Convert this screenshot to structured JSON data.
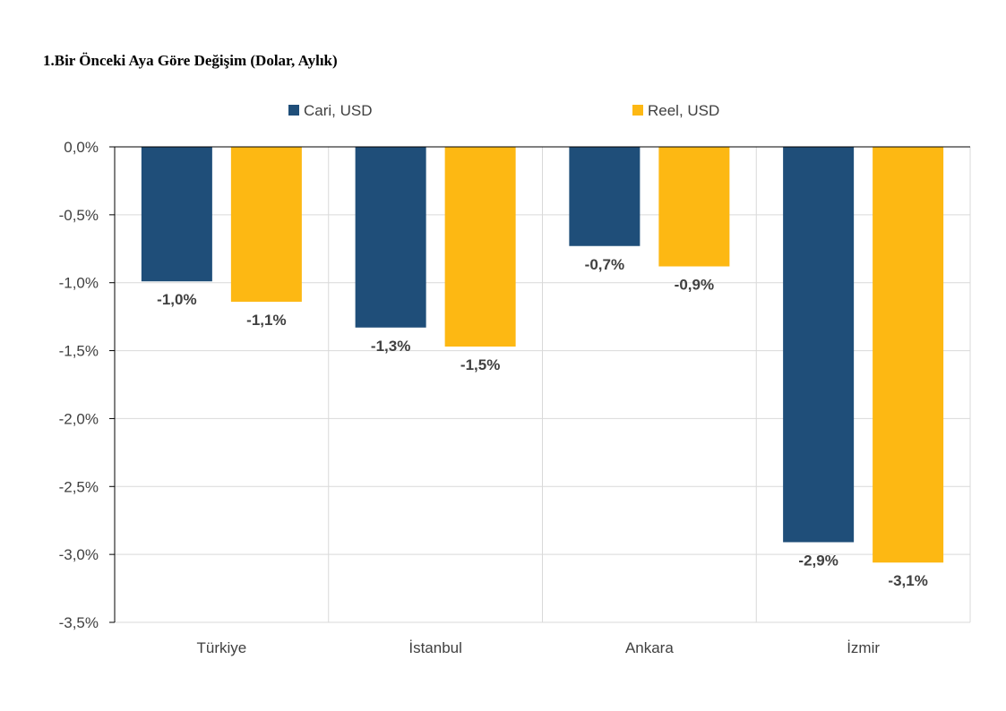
{
  "chart_data": {
    "type": "bar",
    "title": "1.Bir Önceki Aya Göre Değişim (Dolar, Aylık)",
    "categories": [
      "Türkiye",
      "İstanbul",
      "Ankara",
      "İzmir"
    ],
    "series": [
      {
        "name": "Cari, USD",
        "color": "#1F4E79",
        "values": [
          -0.99,
          -1.33,
          -0.73,
          -2.91
        ],
        "labels": [
          "-1,0%",
          "-1,3%",
          "-0,7%",
          "-2,9%"
        ]
      },
      {
        "name": "Reel, USD",
        "color": "#FDB813",
        "values": [
          -1.14,
          -1.47,
          -0.88,
          -3.06
        ],
        "labels": [
          "-1,1%",
          "-1,5%",
          "-0,9%",
          "-3,1%"
        ]
      }
    ],
    "y_ticks": [
      0,
      -0.5,
      -1.0,
      -1.5,
      -2.0,
      -2.5,
      -3.0,
      -3.5
    ],
    "y_tick_labels": [
      "0,0%",
      "-0,5%",
      "-1,0%",
      "-1,5%",
      "-2,0%",
      "-2,5%",
      "-3,0%",
      "-3,5%"
    ],
    "ylim": [
      -3.5,
      0
    ],
    "grid": true,
    "legend_position": "top"
  }
}
